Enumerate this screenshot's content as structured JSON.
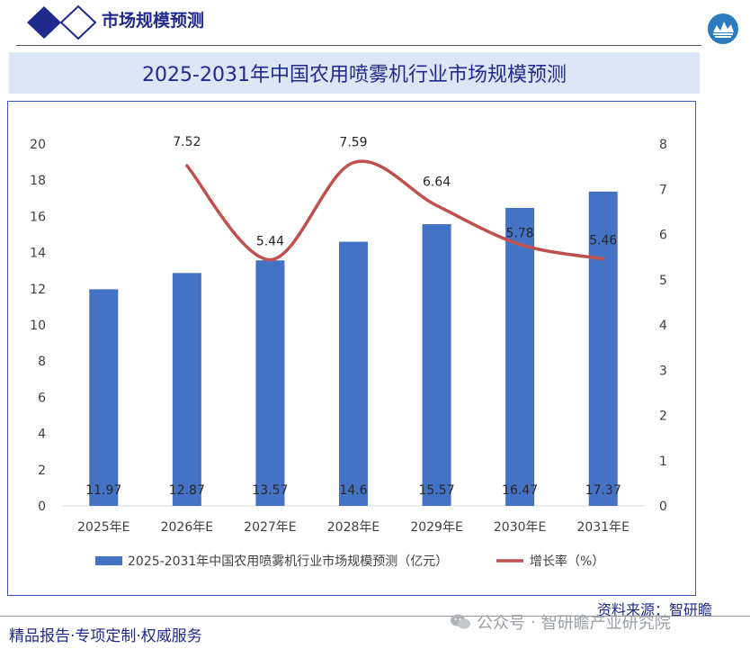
{
  "header": {
    "title": "市场规模预测"
  },
  "chart_title": "2025-2031年中国农用喷雾机行业市场规模预测",
  "chart_data": {
    "type": "bar",
    "title": "2025-2031年中国农用喷雾机行业市场规模预测",
    "categories": [
      "2025年E",
      "2026年E",
      "2027年E",
      "2028年E",
      "2029年E",
      "2030年E",
      "2031年E"
    ],
    "series": [
      {
        "name": "2025-2031年中国农用喷雾机行业市场规模预测（亿元）",
        "type": "bar",
        "axis": "left",
        "color": "#4472c4",
        "values": [
          11.97,
          12.87,
          13.57,
          14.6,
          15.57,
          16.47,
          17.37
        ],
        "labels": [
          "11.97",
          "12.87",
          "13.57",
          "14.6",
          "15.57",
          "16.47",
          "17.37"
        ]
      },
      {
        "name": "增长率（%）",
        "type": "line",
        "axis": "right",
        "color": "#c0504d",
        "values": [
          null,
          7.52,
          5.44,
          7.59,
          6.64,
          5.78,
          5.46
        ],
        "labels": [
          "",
          "7.52",
          "5.44",
          "7.59",
          "6.64",
          "5.78",
          "5.46"
        ]
      }
    ],
    "ylim": [
      0,
      20
    ],
    "yticks": [
      "0",
      "2",
      "4",
      "6",
      "8",
      "10",
      "12",
      "14",
      "16",
      "18",
      "20"
    ],
    "y2lim": [
      0,
      8
    ],
    "y2ticks": [
      "0",
      "1",
      "2",
      "3",
      "4",
      "5",
      "6",
      "7",
      "8"
    ],
    "grid": false,
    "legend_position": "bottom"
  },
  "source": "资料来源：智研瞻",
  "footer": {
    "left": "精品报告·专项定制·权威服务"
  },
  "watermark": {
    "dot": "·",
    "account": "公众号",
    "org": "智研瞻产业研究院"
  },
  "colors": {
    "title": "#1f2a8c",
    "band": "#dbe6f7",
    "bar": "#4472c4",
    "line": "#c0504d"
  }
}
